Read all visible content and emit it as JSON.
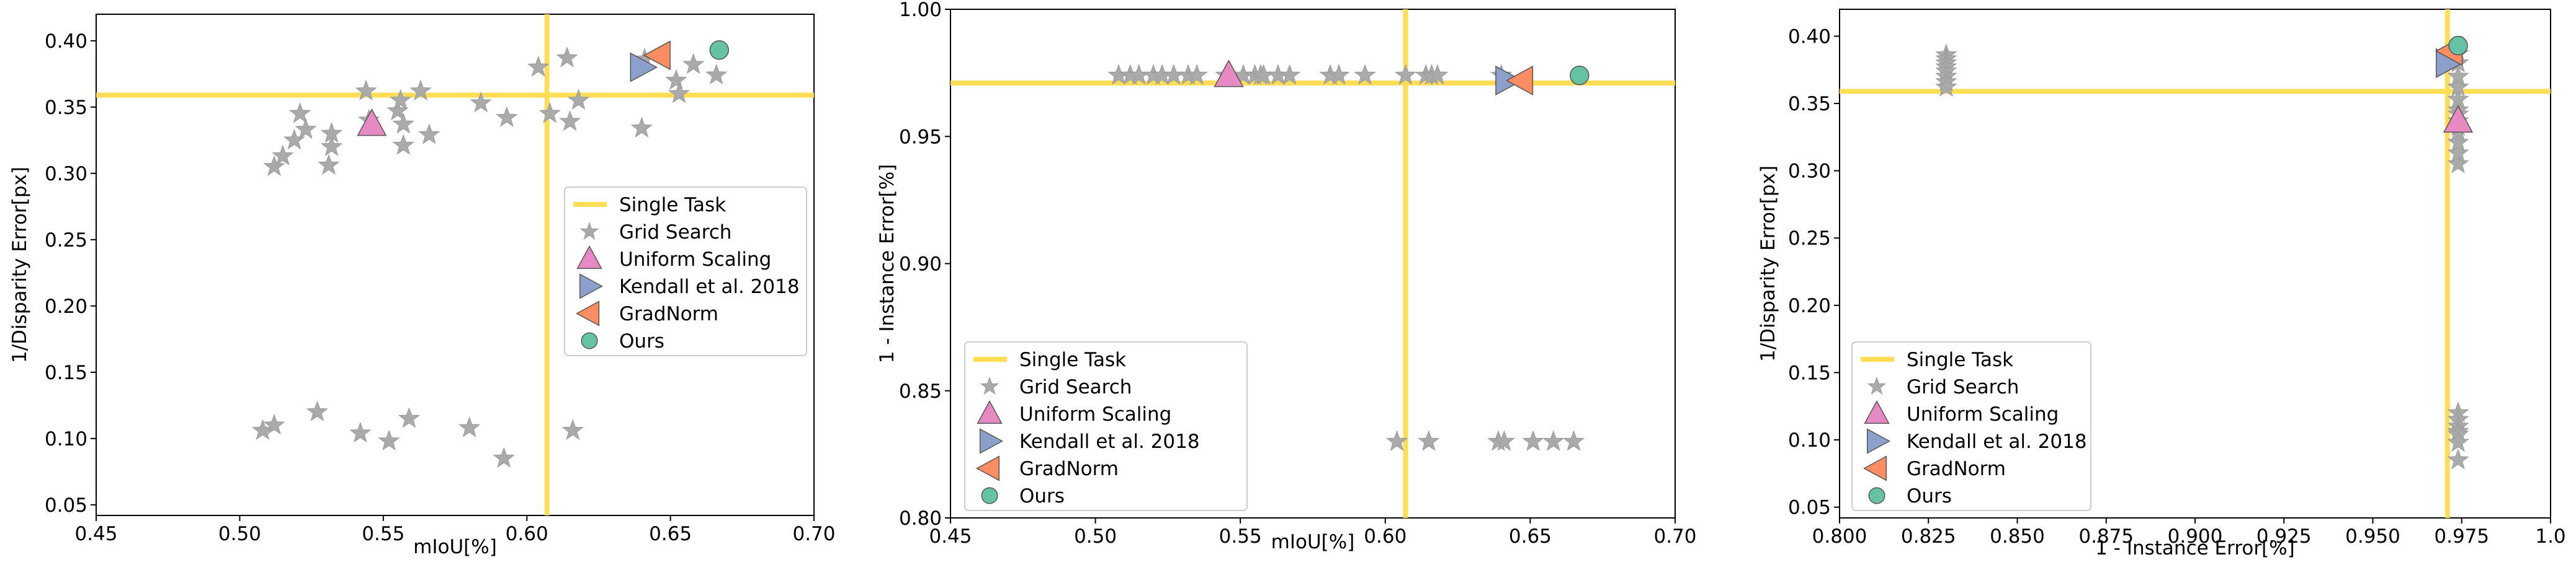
{
  "colors": {
    "single_task": "#ffdd55",
    "grid_search": "#aaaaaa",
    "grid_search_edge": "#999999",
    "uniform_scaling": "#e78ac3",
    "kendall": "#8da0cb",
    "gradnorm": "#fc8d62",
    "ours": "#66c2a5",
    "marker_edge": "#555555"
  },
  "legend_entries": [
    "Single Task",
    "Grid Search",
    "Uniform Scaling",
    "Kendall et al. 2018",
    "GradNorm",
    "Ours"
  ],
  "chart_data": [
    {
      "type": "scatter",
      "title": "",
      "xlabel": "mIoU[%]",
      "ylabel": "1/Disparity Error[px]",
      "xlim": [
        0.45,
        0.7
      ],
      "ylim": [
        0.042,
        0.42
      ],
      "xticks": [
        0.45,
        0.5,
        0.55,
        0.6,
        0.65,
        0.7
      ],
      "xtick_labels": [
        "0.45",
        "0.50",
        "0.55",
        "0.60",
        "0.65",
        "0.70"
      ],
      "yticks": [
        0.05,
        0.1,
        0.15,
        0.2,
        0.25,
        0.3,
        0.35,
        0.4
      ],
      "ytick_labels": [
        "0.05",
        "0.10",
        "0.15",
        "0.20",
        "0.25",
        "0.30",
        "0.35",
        "0.40"
      ],
      "legend_position": "center-right",
      "single_task": {
        "x": 0.607,
        "y": 0.359
      },
      "grid_search": [
        [
          0.512,
          0.305
        ],
        [
          0.515,
          0.313
        ],
        [
          0.519,
          0.325
        ],
        [
          0.521,
          0.345
        ],
        [
          0.523,
          0.333
        ],
        [
          0.531,
          0.306
        ],
        [
          0.532,
          0.32
        ],
        [
          0.532,
          0.33
        ],
        [
          0.544,
          0.362
        ],
        [
          0.545,
          0.34
        ],
        [
          0.555,
          0.347
        ],
        [
          0.556,
          0.355
        ],
        [
          0.557,
          0.337
        ],
        [
          0.557,
          0.321
        ],
        [
          0.563,
          0.362
        ],
        [
          0.566,
          0.329
        ],
        [
          0.584,
          0.353
        ],
        [
          0.593,
          0.342
        ],
        [
          0.604,
          0.38
        ],
        [
          0.608,
          0.345
        ],
        [
          0.614,
          0.387
        ],
        [
          0.615,
          0.339
        ],
        [
          0.618,
          0.355
        ],
        [
          0.64,
          0.334
        ],
        [
          0.652,
          0.37
        ],
        [
          0.653,
          0.36
        ],
        [
          0.658,
          0.382
        ],
        [
          0.666,
          0.374
        ],
        [
          0.641,
          0.386
        ],
        [
          0.508,
          0.106
        ],
        [
          0.512,
          0.11
        ],
        [
          0.527,
          0.12
        ],
        [
          0.542,
          0.104
        ],
        [
          0.552,
          0.098
        ],
        [
          0.559,
          0.115
        ],
        [
          0.58,
          0.108
        ],
        [
          0.592,
          0.085
        ],
        [
          0.616,
          0.106
        ]
      ],
      "uniform_scaling": {
        "x": 0.546,
        "y": 0.337
      },
      "kendall": {
        "x": 0.64,
        "y": 0.38
      },
      "gradnorm": {
        "x": 0.646,
        "y": 0.389
      },
      "ours": {
        "x": 0.667,
        "y": 0.393
      }
    },
    {
      "type": "scatter",
      "title": "",
      "xlabel": "mIoU[%]",
      "ylabel": "1 - Instance Error[%]",
      "xlim": [
        0.45,
        0.7
      ],
      "ylim": [
        0.8,
        1.0
      ],
      "xticks": [
        0.45,
        0.5,
        0.55,
        0.6,
        0.65,
        0.7
      ],
      "xtick_labels": [
        "0.45",
        "0.50",
        "0.55",
        "0.60",
        "0.65",
        "0.70"
      ],
      "yticks": [
        0.8,
        0.85,
        0.9,
        0.95,
        1.0
      ],
      "ytick_labels": [
        "0.80",
        "0.85",
        "0.90",
        "0.95",
        "1.00"
      ],
      "legend_position": "lower-left",
      "single_task": {
        "x": 0.607,
        "y": 0.971
      },
      "grid_search": [
        [
          0.508,
          0.974
        ],
        [
          0.512,
          0.974
        ],
        [
          0.515,
          0.974
        ],
        [
          0.52,
          0.974
        ],
        [
          0.523,
          0.974
        ],
        [
          0.527,
          0.974
        ],
        [
          0.532,
          0.974
        ],
        [
          0.535,
          0.974
        ],
        [
          0.545,
          0.974
        ],
        [
          0.551,
          0.974
        ],
        [
          0.555,
          0.974
        ],
        [
          0.557,
          0.974
        ],
        [
          0.558,
          0.974
        ],
        [
          0.563,
          0.974
        ],
        [
          0.567,
          0.974
        ],
        [
          0.581,
          0.974
        ],
        [
          0.584,
          0.974
        ],
        [
          0.593,
          0.974
        ],
        [
          0.607,
          0.974
        ],
        [
          0.614,
          0.974
        ],
        [
          0.616,
          0.974
        ],
        [
          0.618,
          0.974
        ],
        [
          0.64,
          0.974
        ],
        [
          0.604,
          0.83
        ],
        [
          0.615,
          0.83
        ],
        [
          0.639,
          0.83
        ],
        [
          0.641,
          0.83
        ],
        [
          0.651,
          0.83
        ],
        [
          0.658,
          0.83
        ],
        [
          0.665,
          0.83
        ]
      ],
      "uniform_scaling": {
        "x": 0.546,
        "y": 0.974
      },
      "kendall": {
        "x": 0.642,
        "y": 0.972
      },
      "gradnorm": {
        "x": 0.647,
        "y": 0.972
      },
      "ours": {
        "x": 0.667,
        "y": 0.974
      }
    },
    {
      "type": "scatter",
      "title": "",
      "xlabel": "1 - Instance Error[%]",
      "ylabel": "1/Disparity Error[px]",
      "xlim": [
        0.8,
        1.0
      ],
      "ylim": [
        0.042,
        0.42
      ],
      "xticks": [
        0.8,
        0.825,
        0.85,
        0.875,
        0.9,
        0.925,
        0.95,
        0.975,
        1.0
      ],
      "xtick_labels": [
        "0.800",
        "0.825",
        "0.850",
        "0.875",
        "0.900",
        "0.925",
        "0.950",
        "0.975",
        "1.0"
      ],
      "yticks": [
        0.05,
        0.1,
        0.15,
        0.2,
        0.25,
        0.3,
        0.35,
        0.4
      ],
      "ytick_labels": [
        "0.05",
        "0.10",
        "0.15",
        "0.20",
        "0.25",
        "0.30",
        "0.35",
        "0.40"
      ],
      "legend_position": "lower-left",
      "single_task": {
        "x": 0.971,
        "y": 0.359
      },
      "grid_search": [
        [
          0.83,
          0.386
        ],
        [
          0.83,
          0.383
        ],
        [
          0.83,
          0.38
        ],
        [
          0.83,
          0.377
        ],
        [
          0.83,
          0.374
        ],
        [
          0.83,
          0.37
        ],
        [
          0.83,
          0.366
        ],
        [
          0.83,
          0.362
        ],
        [
          0.974,
          0.305
        ],
        [
          0.974,
          0.313
        ],
        [
          0.974,
          0.321
        ],
        [
          0.974,
          0.329
        ],
        [
          0.974,
          0.337
        ],
        [
          0.974,
          0.345
        ],
        [
          0.974,
          0.353
        ],
        [
          0.974,
          0.362
        ],
        [
          0.974,
          0.37
        ],
        [
          0.974,
          0.38
        ],
        [
          0.974,
          0.387
        ],
        [
          0.974,
          0.342
        ],
        [
          0.974,
          0.333
        ],
        [
          0.974,
          0.12
        ],
        [
          0.974,
          0.115
        ],
        [
          0.974,
          0.11
        ],
        [
          0.974,
          0.106
        ],
        [
          0.974,
          0.104
        ],
        [
          0.974,
          0.098
        ],
        [
          0.974,
          0.085
        ]
      ],
      "uniform_scaling": {
        "x": 0.974,
        "y": 0.337
      },
      "kendall": {
        "x": 0.971,
        "y": 0.38
      },
      "gradnorm": {
        "x": 0.972,
        "y": 0.389
      },
      "ours": {
        "x": 0.974,
        "y": 0.393
      }
    }
  ]
}
